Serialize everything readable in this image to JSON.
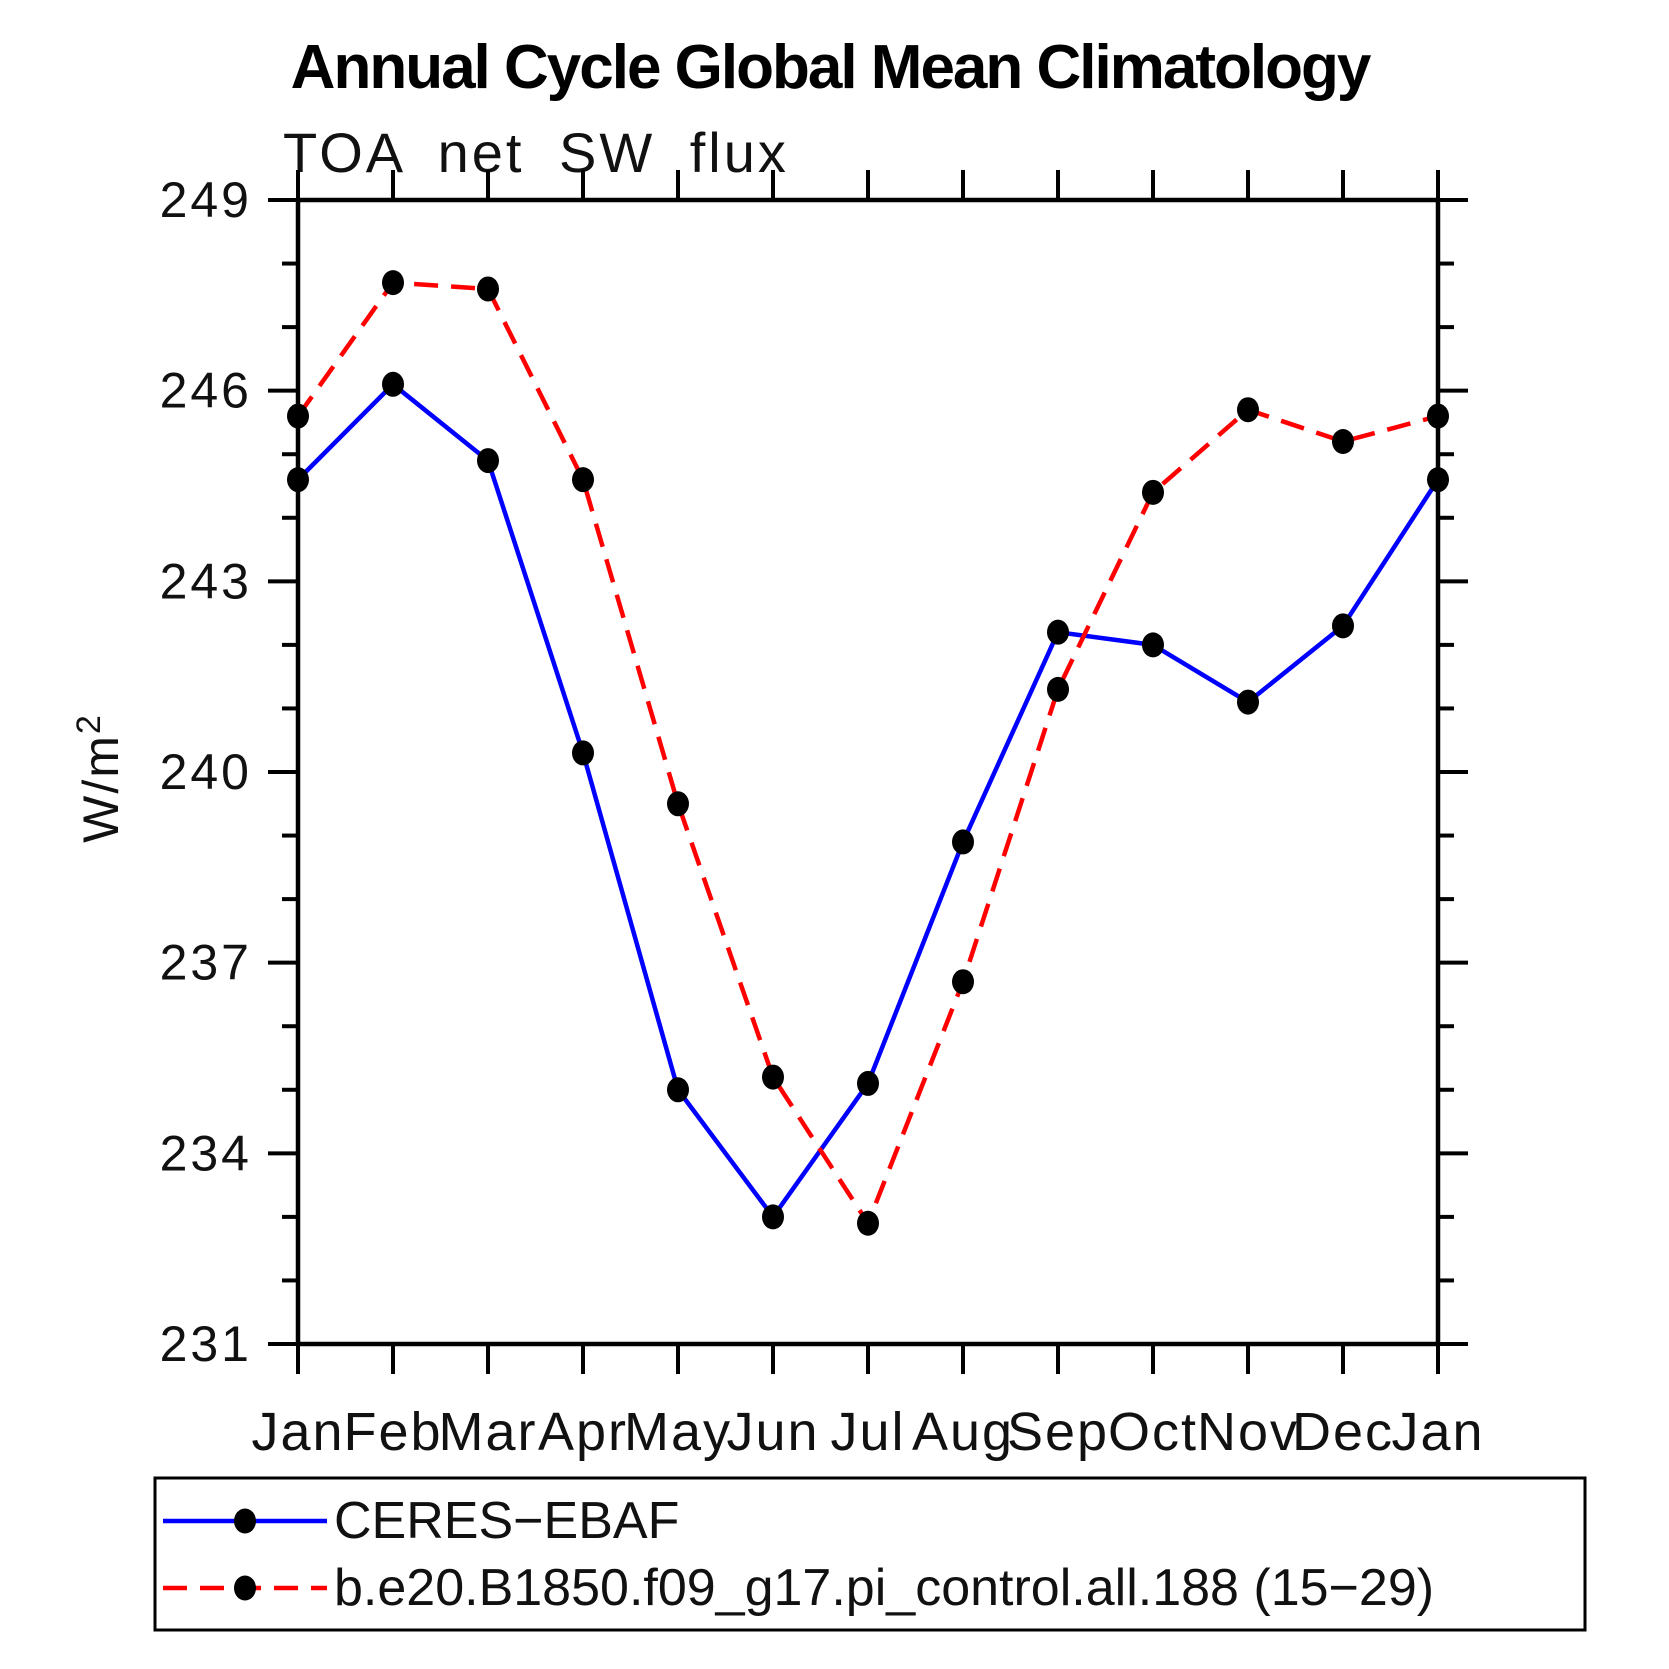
{
  "title": "Annual Cycle Global Mean Climatology",
  "subtitle": "TOA net SW flux",
  "y_axis": {
    "label_main": "W/m",
    "label_sup": "2",
    "unit_label": "W/m²"
  },
  "axis_color": "#000000",
  "legend": {
    "items": [
      {
        "label": "CERES−EBAF",
        "slug": "ceres-ebaf",
        "color": "#0000ff",
        "style": "solid",
        "marker": "filled-circle",
        "marker_color": "#000000"
      },
      {
        "label": "b.e20.B1850.f09_g17.pi_control.all.188 (15−29)",
        "slug": "model-b-e20-b1850",
        "color": "#ff0000",
        "style": "dashed",
        "marker": "filled-circle",
        "marker_color": "#000000"
      }
    ]
  },
  "chart_data": {
    "type": "line",
    "title": "Annual Cycle Global Mean Climatology",
    "subtitle": "TOA net SW flux",
    "xlabel": "",
    "ylabel": "W/m²",
    "categories": [
      "Jan",
      "Feb",
      "Mar",
      "Apr",
      "May",
      "Jun",
      "Jul",
      "Aug",
      "Sep",
      "Oct",
      "Nov",
      "Dec",
      "Jan"
    ],
    "series": [
      {
        "name": "CERES−EBAF",
        "slug": "ceres-ebaf",
        "color": "#0000ff",
        "line_style": "solid",
        "marker": "filled-circle",
        "marker_color": "#000000",
        "values": [
          244.6,
          246.1,
          244.9,
          240.3,
          235.0,
          233.0,
          235.1,
          238.9,
          242.2,
          242.0,
          241.1,
          242.3,
          244.6
        ]
      },
      {
        "name": "b.e20.B1850.f09_g17.pi_control.all.188 (15−29)",
        "slug": "model-b-e20-b1850",
        "color": "#ff0000",
        "line_style": "dashed",
        "marker": "filled-circle",
        "marker_color": "#000000",
        "values": [
          245.6,
          247.7,
          247.6,
          244.6,
          239.5,
          235.2,
          232.9,
          236.7,
          241.3,
          244.4,
          245.7,
          245.2,
          245.6
        ]
      }
    ],
    "ylim": [
      231,
      249
    ],
    "yticks_major": [
      231,
      234,
      237,
      240,
      243,
      246,
      249
    ],
    "ytick_minor_step": 1,
    "grid": false,
    "legend_position": "bottom"
  }
}
